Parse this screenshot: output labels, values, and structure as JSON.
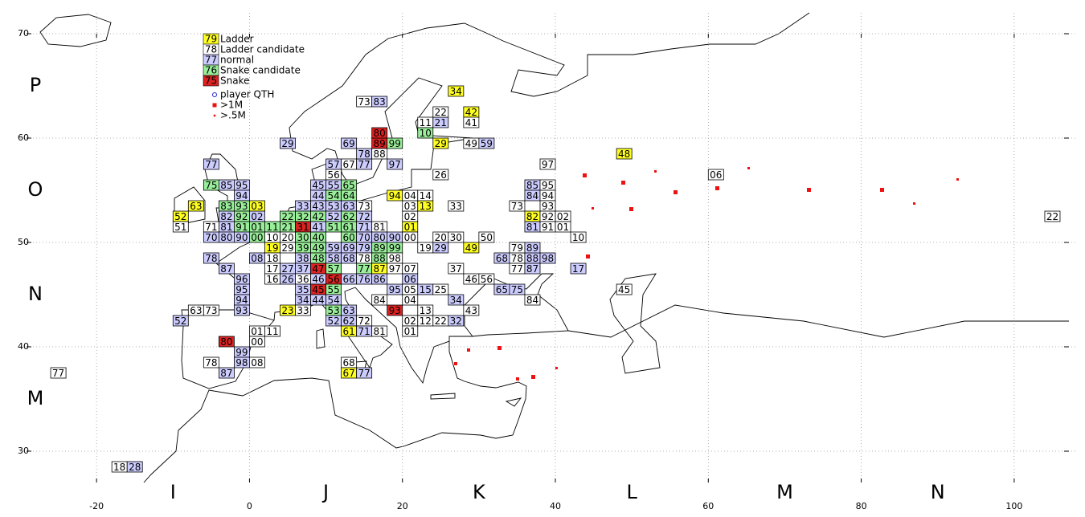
{
  "chart_data": {
    "type": "grid-map",
    "xlim": [
      -30,
      108
    ],
    "ylim": [
      27,
      72
    ],
    "xticks": [
      -20,
      0,
      20,
      40,
      60,
      80,
      100
    ],
    "yticks": [
      30,
      40,
      50,
      60,
      70
    ],
    "grid": true,
    "square_size": [
      2,
      1
    ],
    "x_fields": [
      {
        "value": -10,
        "label": "I"
      },
      {
        "value": 10,
        "label": "J"
      },
      {
        "value": 30,
        "label": "K"
      },
      {
        "value": 50,
        "label": "L"
      },
      {
        "value": 70,
        "label": "M"
      },
      {
        "value": 90,
        "label": "N"
      }
    ],
    "y_fields": [
      {
        "value": 35,
        "label": "M"
      },
      {
        "value": 45,
        "label": "N"
      },
      {
        "value": 55,
        "label": "O"
      },
      {
        "value": 65,
        "label": "P"
      }
    ],
    "legend": [
      {
        "sample": "79",
        "label": "Ladder",
        "color": "#ffff22"
      },
      {
        "sample": "78",
        "label": "Ladder candidate",
        "color": "#ffffff"
      },
      {
        "sample": "77",
        "label": "normal",
        "color": "#ccccff"
      },
      {
        "sample": "76",
        "label": "Snake candidate",
        "color": "#99ee99"
      },
      {
        "sample": "75",
        "label": "Snake",
        "color": "#dd2222"
      }
    ],
    "markers": [
      {
        "label": "player QTH",
        "color": "#2222cc"
      },
      {
        "label": ">1M",
        "color": "#ee1111"
      },
      {
        "label": ">.5M",
        "color": "#ee1111"
      }
    ],
    "squares": [
      [
        "77",
        -6,
        57,
        2
      ],
      [
        "75",
        -6,
        55,
        3
      ],
      [
        "85",
        -4,
        55,
        2
      ],
      [
        "95",
        -2,
        55,
        2
      ],
      [
        "94",
        -2,
        54,
        2
      ],
      [
        "63",
        -8,
        53,
        0
      ],
      [
        "83",
        -4,
        53,
        3
      ],
      [
        "93",
        -2,
        53,
        3
      ],
      [
        "52",
        -10,
        52,
        0
      ],
      [
        "82",
        -4,
        52,
        2
      ],
      [
        "92",
        -2,
        52,
        3
      ],
      [
        "51",
        -10,
        51,
        1
      ],
      [
        "71",
        -6,
        51,
        1
      ],
      [
        "81",
        -4,
        51,
        2
      ],
      [
        "91",
        -2,
        51,
        3
      ],
      [
        "70",
        -6,
        50,
        2
      ],
      [
        "80",
        -4,
        50,
        2
      ],
      [
        "90",
        -2,
        50,
        2
      ],
      [
        "78",
        -6,
        48,
        2
      ],
      [
        "87",
        -4,
        47,
        2
      ],
      [
        "96",
        -2,
        46,
        2
      ],
      [
        "95",
        -2,
        45,
        2
      ],
      [
        "94",
        -2,
        44,
        2
      ],
      [
        "93",
        -2,
        43,
        2
      ],
      [
        "63",
        -8,
        43,
        1
      ],
      [
        "73",
        -6,
        43,
        1
      ],
      [
        "52",
        -10,
        42,
        2
      ],
      [
        "80",
        -4,
        40,
        4
      ],
      [
        "99",
        -2,
        39,
        2
      ],
      [
        "98",
        -2,
        38,
        2
      ],
      [
        "78",
        -6,
        38,
        1
      ],
      [
        "87",
        -4,
        37,
        2
      ],
      [
        "77",
        -26,
        37,
        1
      ],
      [
        "18",
        -18,
        28,
        1
      ],
      [
        "28",
        -16,
        28,
        2
      ],
      [
        "03",
        0,
        53,
        0
      ],
      [
        "02",
        0,
        52,
        2
      ],
      [
        "01",
        0,
        51,
        3
      ],
      [
        "00",
        0,
        50,
        3
      ],
      [
        "11",
        2,
        51,
        3
      ],
      [
        "10",
        2,
        50,
        1
      ],
      [
        "22",
        4,
        52,
        3
      ],
      [
        "21",
        4,
        51,
        3
      ],
      [
        "20",
        4,
        50,
        1
      ],
      [
        "33",
        6,
        53,
        2
      ],
      [
        "32",
        6,
        52,
        3
      ],
      [
        "31",
        6,
        51,
        4
      ],
      [
        "30",
        6,
        50,
        3
      ],
      [
        "45",
        8,
        55,
        2
      ],
      [
        "44",
        8,
        54,
        2
      ],
      [
        "43",
        8,
        53,
        2
      ],
      [
        "42",
        8,
        52,
        3
      ],
      [
        "41",
        8,
        51,
        2
      ],
      [
        "40",
        8,
        50,
        3
      ],
      [
        "57",
        10,
        57,
        2
      ],
      [
        "56",
        10,
        56,
        1
      ],
      [
        "55",
        10,
        55,
        2
      ],
      [
        "54",
        10,
        54,
        3
      ],
      [
        "53",
        10,
        53,
        2
      ],
      [
        "52",
        10,
        52,
        2
      ],
      [
        "51",
        10,
        51,
        3
      ],
      [
        "67",
        12,
        57,
        1
      ],
      [
        "65",
        12,
        55,
        3
      ],
      [
        "64",
        12,
        54,
        3
      ],
      [
        "63",
        12,
        53,
        2
      ],
      [
        "62",
        12,
        52,
        3
      ],
      [
        "61",
        12,
        51,
        3
      ],
      [
        "60",
        12,
        50,
        3
      ],
      [
        "77",
        14,
        57,
        2
      ],
      [
        "73",
        14,
        53,
        1
      ],
      [
        "72",
        14,
        52,
        2
      ],
      [
        "71",
        14,
        51,
        2
      ],
      [
        "70",
        14,
        50,
        2
      ],
      [
        "81",
        16,
        51,
        1
      ],
      [
        "80",
        16,
        50,
        2
      ],
      [
        "90",
        18,
        50,
        2
      ],
      [
        "69",
        12,
        59,
        2
      ],
      [
        "89",
        16,
        59,
        4
      ],
      [
        "80",
        16,
        60,
        4
      ],
      [
        "99",
        18,
        59,
        3
      ],
      [
        "78",
        14,
        58,
        2
      ],
      [
        "88",
        16,
        58,
        1
      ],
      [
        "97",
        18,
        57,
        2
      ],
      [
        "29",
        4,
        59,
        2
      ],
      [
        "73",
        14,
        63,
        1
      ],
      [
        "83",
        16,
        63,
        2
      ],
      [
        "94",
        18,
        54,
        0
      ],
      [
        "19",
        2,
        49,
        0
      ],
      [
        "29",
        4,
        49,
        1
      ],
      [
        "39",
        6,
        49,
        3
      ],
      [
        "49",
        8,
        49,
        3
      ],
      [
        "59",
        10,
        49,
        2
      ],
      [
        "69",
        12,
        49,
        2
      ],
      [
        "79",
        14,
        49,
        2
      ],
      [
        "89",
        16,
        49,
        3
      ],
      [
        "99",
        18,
        49,
        3
      ],
      [
        "08",
        0,
        48,
        2
      ],
      [
        "18",
        2,
        48,
        1
      ],
      [
        "38",
        6,
        48,
        2
      ],
      [
        "48",
        8,
        48,
        3
      ],
      [
        "58",
        10,
        48,
        2
      ],
      [
        "68",
        12,
        48,
        2
      ],
      [
        "78",
        14,
        48,
        1
      ],
      [
        "88",
        16,
        48,
        3
      ],
      [
        "98",
        18,
        48,
        1
      ],
      [
        "17",
        2,
        47,
        1
      ],
      [
        "27",
        4,
        47,
        2
      ],
      [
        "37",
        6,
        47,
        2
      ],
      [
        "47",
        8,
        47,
        4
      ],
      [
        "57",
        10,
        47,
        3
      ],
      [
        "77",
        14,
        47,
        3
      ],
      [
        "87",
        16,
        47,
        0
      ],
      [
        "97",
        18,
        47,
        1
      ],
      [
        "16",
        2,
        46,
        1
      ],
      [
        "26",
        4,
        46,
        2
      ],
      [
        "36",
        6,
        46,
        1
      ],
      [
        "46",
        8,
        46,
        2
      ],
      [
        "56",
        10,
        46,
        4
      ],
      [
        "66",
        12,
        46,
        2
      ],
      [
        "76",
        14,
        46,
        2
      ],
      [
        "86",
        16,
        46,
        2
      ],
      [
        "35",
        6,
        45,
        2
      ],
      [
        "45",
        8,
        45,
        4
      ],
      [
        "55",
        10,
        45,
        3
      ],
      [
        "95",
        18,
        45,
        2
      ],
      [
        "34",
        6,
        44,
        2
      ],
      [
        "44",
        8,
        44,
        2
      ],
      [
        "54",
        10,
        44,
        2
      ],
      [
        "84",
        16,
        44,
        1
      ],
      [
        "23",
        4,
        43,
        0
      ],
      [
        "33",
        6,
        43,
        1
      ],
      [
        "53",
        10,
        43,
        3
      ],
      [
        "63",
        12,
        43,
        2
      ],
      [
        "93",
        18,
        43,
        4
      ],
      [
        "52",
        10,
        42,
        2
      ],
      [
        "62",
        12,
        42,
        2
      ],
      [
        "72",
        14,
        42,
        1
      ],
      [
        "01",
        0,
        41,
        1
      ],
      [
        "11",
        2,
        41,
        1
      ],
      [
        "61",
        12,
        41,
        0
      ],
      [
        "71",
        14,
        41,
        2
      ],
      [
        "81",
        16,
        41,
        1
      ],
      [
        "00",
        0,
        40,
        1
      ],
      [
        "08",
        0,
        38,
        1
      ],
      [
        "68",
        12,
        38,
        1
      ],
      [
        "67",
        12,
        37,
        0
      ],
      [
        "77",
        14,
        37,
        2
      ],
      [
        "01",
        20,
        51,
        0
      ],
      [
        "00",
        20,
        50,
        1
      ],
      [
        "02",
        20,
        52,
        1
      ],
      [
        "03",
        20,
        53,
        1
      ],
      [
        "13",
        22,
        53,
        0
      ],
      [
        "04",
        20,
        54,
        1
      ],
      [
        "14",
        22,
        54,
        1
      ],
      [
        "26",
        24,
        56,
        1
      ],
      [
        "33",
        26,
        53,
        1
      ],
      [
        "11",
        22,
        61,
        1
      ],
      [
        "21",
        24,
        61,
        2
      ],
      [
        "22",
        24,
        62,
        1
      ],
      [
        "10",
        22,
        60,
        3
      ],
      [
        "42",
        28,
        62,
        0
      ],
      [
        "41",
        28,
        61,
        1
      ],
      [
        "34",
        26,
        64,
        0
      ],
      [
        "29",
        24,
        59,
        0
      ],
      [
        "49",
        28,
        59,
        1
      ],
      [
        "59",
        30,
        59,
        2
      ],
      [
        "20",
        24,
        50,
        1
      ],
      [
        "30",
        26,
        50,
        1
      ],
      [
        "50",
        30,
        50,
        1
      ],
      [
        "19",
        22,
        49,
        1
      ],
      [
        "29",
        24,
        49,
        2
      ],
      [
        "49",
        28,
        49,
        0
      ],
      [
        "07",
        20,
        47,
        1
      ],
      [
        "37",
        26,
        47,
        1
      ],
      [
        "06",
        20,
        46,
        2
      ],
      [
        "46",
        28,
        46,
        1
      ],
      [
        "56",
        30,
        46,
        1
      ],
      [
        "05",
        20,
        45,
        1
      ],
      [
        "15",
        22,
        45,
        2
      ],
      [
        "25",
        24,
        45,
        1
      ],
      [
        "04",
        20,
        44,
        1
      ],
      [
        "34",
        26,
        44,
        2
      ],
      [
        "13",
        22,
        43,
        1
      ],
      [
        "43",
        28,
        43,
        1
      ],
      [
        "02",
        20,
        42,
        1
      ],
      [
        "12",
        22,
        42,
        1
      ],
      [
        "22",
        24,
        42,
        1
      ],
      [
        "32",
        26,
        42,
        2
      ],
      [
        "01",
        20,
        41,
        1
      ],
      [
        "65",
        32,
        45,
        2
      ],
      [
        "75",
        34,
        45,
        2
      ],
      [
        "84",
        36,
        44,
        1
      ],
      [
        "68",
        32,
        48,
        2
      ],
      [
        "78",
        34,
        48,
        1
      ],
      [
        "88",
        36,
        48,
        2
      ],
      [
        "98",
        38,
        48,
        2
      ],
      [
        "79",
        34,
        49,
        1
      ],
      [
        "89",
        36,
        49,
        2
      ],
      [
        "77",
        34,
        47,
        1
      ],
      [
        "87",
        36,
        47,
        2
      ],
      [
        "17",
        42,
        47,
        2
      ],
      [
        "45",
        48,
        45,
        1
      ],
      [
        "10",
        42,
        50,
        1
      ],
      [
        "73",
        34,
        53,
        1
      ],
      [
        "85",
        36,
        55,
        2
      ],
      [
        "95",
        38,
        55,
        1
      ],
      [
        "84",
        36,
        54,
        2
      ],
      [
        "94",
        38,
        54,
        1
      ],
      [
        "93",
        38,
        53,
        1
      ],
      [
        "82",
        36,
        52,
        0
      ],
      [
        "92",
        38,
        52,
        1
      ],
      [
        "02",
        40,
        52,
        1
      ],
      [
        "81",
        36,
        51,
        2
      ],
      [
        "91",
        38,
        51,
        1
      ],
      [
        "01",
        40,
        51,
        1
      ],
      [
        "97",
        38,
        57,
        1
      ],
      [
        "48",
        48,
        58,
        0
      ],
      [
        "06",
        60,
        56,
        1
      ],
      [
        "22",
        104,
        52,
        1
      ]
    ]
  }
}
